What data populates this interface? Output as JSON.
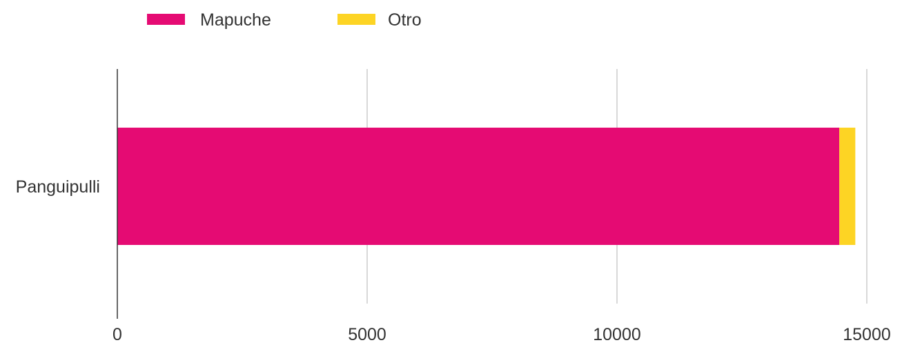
{
  "chart_data": {
    "type": "bar",
    "orientation": "horizontal",
    "stacked": true,
    "categories": [
      "Panguipulli"
    ],
    "series": [
      {
        "name": "Mapuche",
        "values": [
          14450
        ],
        "color": "#E50B73"
      },
      {
        "name": "Otro",
        "values": [
          320
        ],
        "color": "#FDD424"
      }
    ],
    "xlim": [
      0,
      15000
    ],
    "xticks": [
      0,
      5000,
      10000,
      15000
    ],
    "tick_labels": [
      "0",
      "5000",
      "10000",
      "15000"
    ],
    "grid": true,
    "legend_position": "top-left",
    "title": "",
    "xlabel": "",
    "ylabel": ""
  }
}
